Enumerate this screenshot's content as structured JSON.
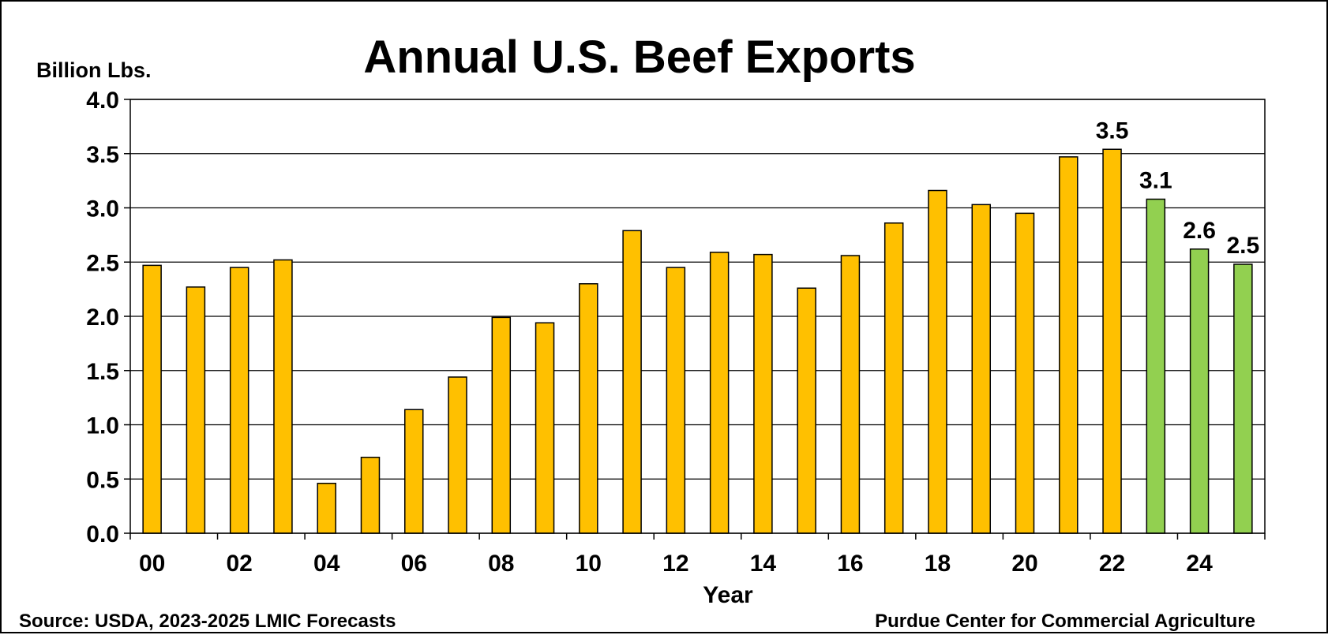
{
  "chart_data": {
    "type": "bar",
    "title": "Annual U.S. Beef Exports",
    "ylabel": "Billion Lbs.",
    "xlabel": "Year",
    "ylim": [
      0,
      4
    ],
    "yticks": [
      "0.0",
      "0.5",
      "1.0",
      "1.5",
      "2.0",
      "2.5",
      "3.0",
      "3.5",
      "4.0"
    ],
    "grid": true,
    "legend": "none",
    "categories": [
      "00",
      "01",
      "02",
      "03",
      "04",
      "05",
      "06",
      "07",
      "08",
      "09",
      "10",
      "11",
      "12",
      "13",
      "14",
      "15",
      "16",
      "17",
      "18",
      "19",
      "20",
      "21",
      "22",
      "23",
      "24",
      "25"
    ],
    "xtick_labels": [
      "00",
      "",
      "02",
      "",
      "04",
      "",
      "06",
      "",
      "08",
      "",
      "10",
      "",
      "12",
      "",
      "14",
      "",
      "16",
      "",
      "18",
      "",
      "20",
      "",
      "22",
      "",
      "24",
      ""
    ],
    "values": [
      2.47,
      2.27,
      2.45,
      2.52,
      0.46,
      0.7,
      1.14,
      1.44,
      1.99,
      1.94,
      2.3,
      2.79,
      2.45,
      2.59,
      2.57,
      2.26,
      2.56,
      2.86,
      3.16,
      3.03,
      2.95,
      3.47,
      3.54,
      3.08,
      2.62,
      2.48
    ],
    "forecast": [
      false,
      false,
      false,
      false,
      false,
      false,
      false,
      false,
      false,
      false,
      false,
      false,
      false,
      false,
      false,
      false,
      false,
      false,
      false,
      false,
      false,
      false,
      false,
      true,
      true,
      true
    ],
    "data_labels": [
      "",
      "",
      "",
      "",
      "",
      "",
      "",
      "",
      "",
      "",
      "",
      "",
      "",
      "",
      "",
      "",
      "",
      "",
      "",
      "",
      "",
      "",
      "3.5",
      "3.1",
      "2.6",
      "2.5"
    ],
    "colors": {
      "actual": "#FFC000",
      "forecast": "#92D050",
      "outline": "#000000",
      "grid": "#000000",
      "background": "#FFFFFF"
    }
  },
  "footer": {
    "source": "Source: USDA, 2023-2025 LMIC Forecasts",
    "credit": "Purdue Center for Commercial Agriculture"
  }
}
